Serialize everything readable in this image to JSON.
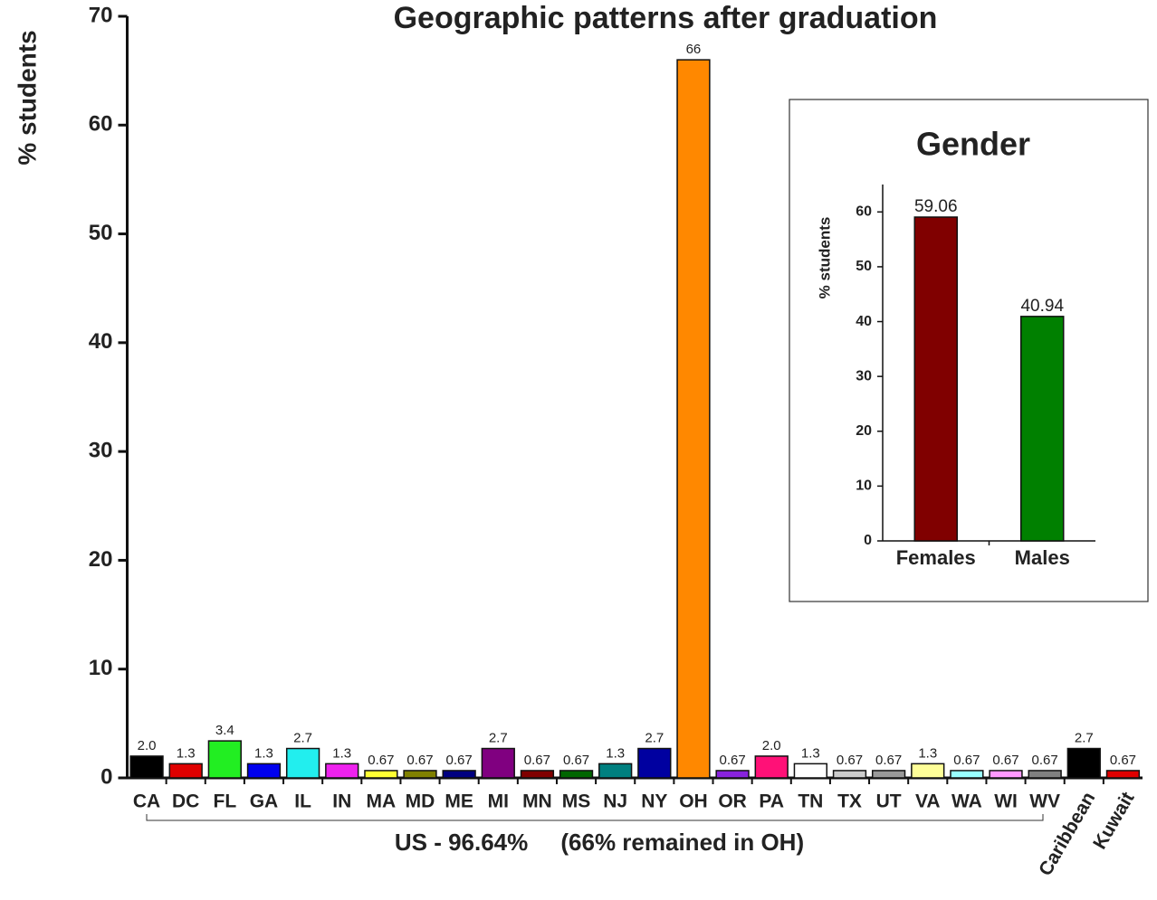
{
  "chart_data": [
    {
      "type": "bar",
      "title": "Geographic patterns after graduation",
      "ylabel": "% students",
      "annotation": "US - 96.64%     (66% remained in OH)",
      "categories": [
        "CA",
        "DC",
        "FL",
        "GA",
        "IL",
        "IN",
        "MA",
        "MD",
        "ME",
        "MI",
        "MN",
        "MS",
        "NJ",
        "NY",
        "OH",
        "OR",
        "PA",
        "TN",
        "TX",
        "UT",
        "VA",
        "WA",
        "WI",
        "WV",
        "Caribbean",
        "Kuwait"
      ],
      "values": [
        2,
        1.3,
        3.4,
        1.3,
        2.7,
        1.3,
        0.67,
        0.67,
        0.67,
        2.7,
        0.67,
        0.67,
        1.3,
        2.7,
        66,
        0.67,
        2,
        1.3,
        0.67,
        0.67,
        1.3,
        0.67,
        0.67,
        0.67,
        2.7,
        0.67
      ],
      "value_labels": [
        "2.0",
        "1.3",
        "3.4",
        "1.3",
        "2.7",
        "1.3",
        "0.67",
        "0.67",
        "0.67",
        "2.7",
        "0.67",
        "0.67",
        "1.3",
        "2.7",
        "66",
        "0.67",
        "2.0",
        "1.3",
        "0.67",
        "0.67",
        "1.3",
        "0.67",
        "0.67",
        "0.67",
        "2.7",
        "0.67"
      ],
      "colors": [
        "#000000",
        "#e00000",
        "#22ee22",
        "#0000ee",
        "#22eeee",
        "#ee22ee",
        "#ffff33",
        "#808000",
        "#000080",
        "#800080",
        "#800000",
        "#006600",
        "#008080",
        "#0000a0",
        "#ff8800",
        "#8822dd",
        "#ff1177",
        "#ffffff",
        "#cccccc",
        "#999999",
        "#ffff99",
        "#99ffff",
        "#ff99ff",
        "#808080",
        "#000000",
        "#e00000"
      ],
      "ylim": [
        0,
        70
      ],
      "yticks": [
        0,
        10,
        20,
        30,
        40,
        50,
        60,
        70
      ]
    },
    {
      "type": "bar",
      "title": "Gender",
      "ylabel": "% students",
      "categories": [
        "Females",
        "Males"
      ],
      "values": [
        59.06,
        40.94
      ],
      "colors": [
        "#800000",
        "#008000"
      ],
      "ylim": [
        0,
        65
      ],
      "yticks": [
        0,
        10,
        20,
        30,
        40,
        50,
        60
      ]
    }
  ]
}
